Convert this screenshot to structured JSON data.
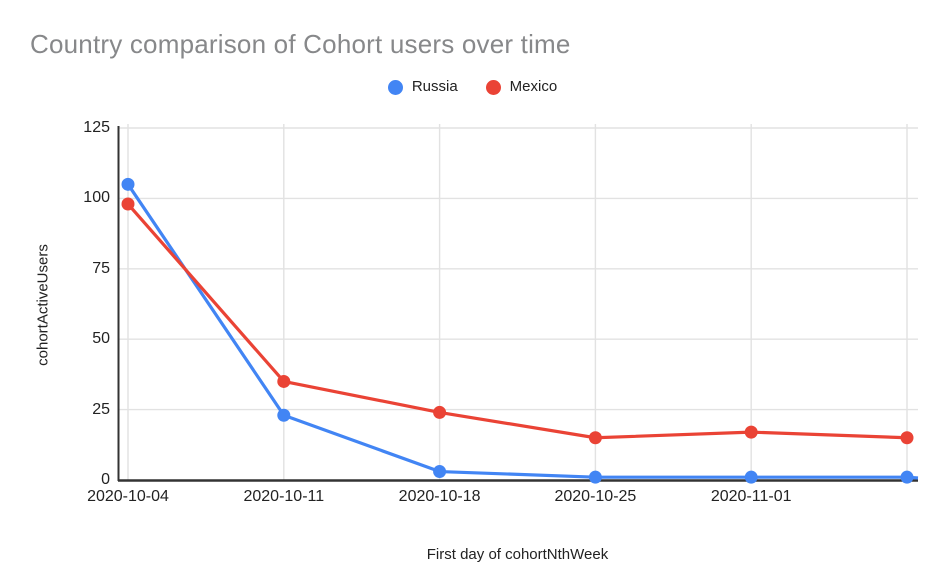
{
  "title": "Country comparison of Cohort users over time",
  "colors": {
    "russia_blue": "#4285F4",
    "mexico_red": "#EA4335",
    "title_gray": "#87888a",
    "axis_text": "#222222",
    "gridline": "#e2e2e2",
    "axis_line": "#333333",
    "background": "#ffffff"
  },
  "chart_data": {
    "type": "line",
    "title": "Country comparison of Cohort users over time",
    "xlabel": "First day of cohortNthWeek",
    "ylabel": "cohortActiveUsers",
    "x_labels": [
      "2020-10-04",
      "2020-10-11",
      "2020-10-18",
      "2020-10-25",
      "2020-11-01",
      ""
    ],
    "y_ticks": [
      0,
      25,
      50,
      75,
      100,
      125
    ],
    "ylim": [
      0,
      125
    ],
    "grid": true,
    "legend_position": "top-center",
    "series": [
      {
        "name": "Russia",
        "color": "#4285F4",
        "values": [
          105,
          23,
          3,
          1,
          1,
          1
        ],
        "line_extends_to_plot_edge": true
      },
      {
        "name": "Mexico",
        "color": "#EA4335",
        "values": [
          98,
          35,
          24,
          15,
          17,
          15
        ],
        "line_extends_to_plot_edge": false
      }
    ]
  }
}
